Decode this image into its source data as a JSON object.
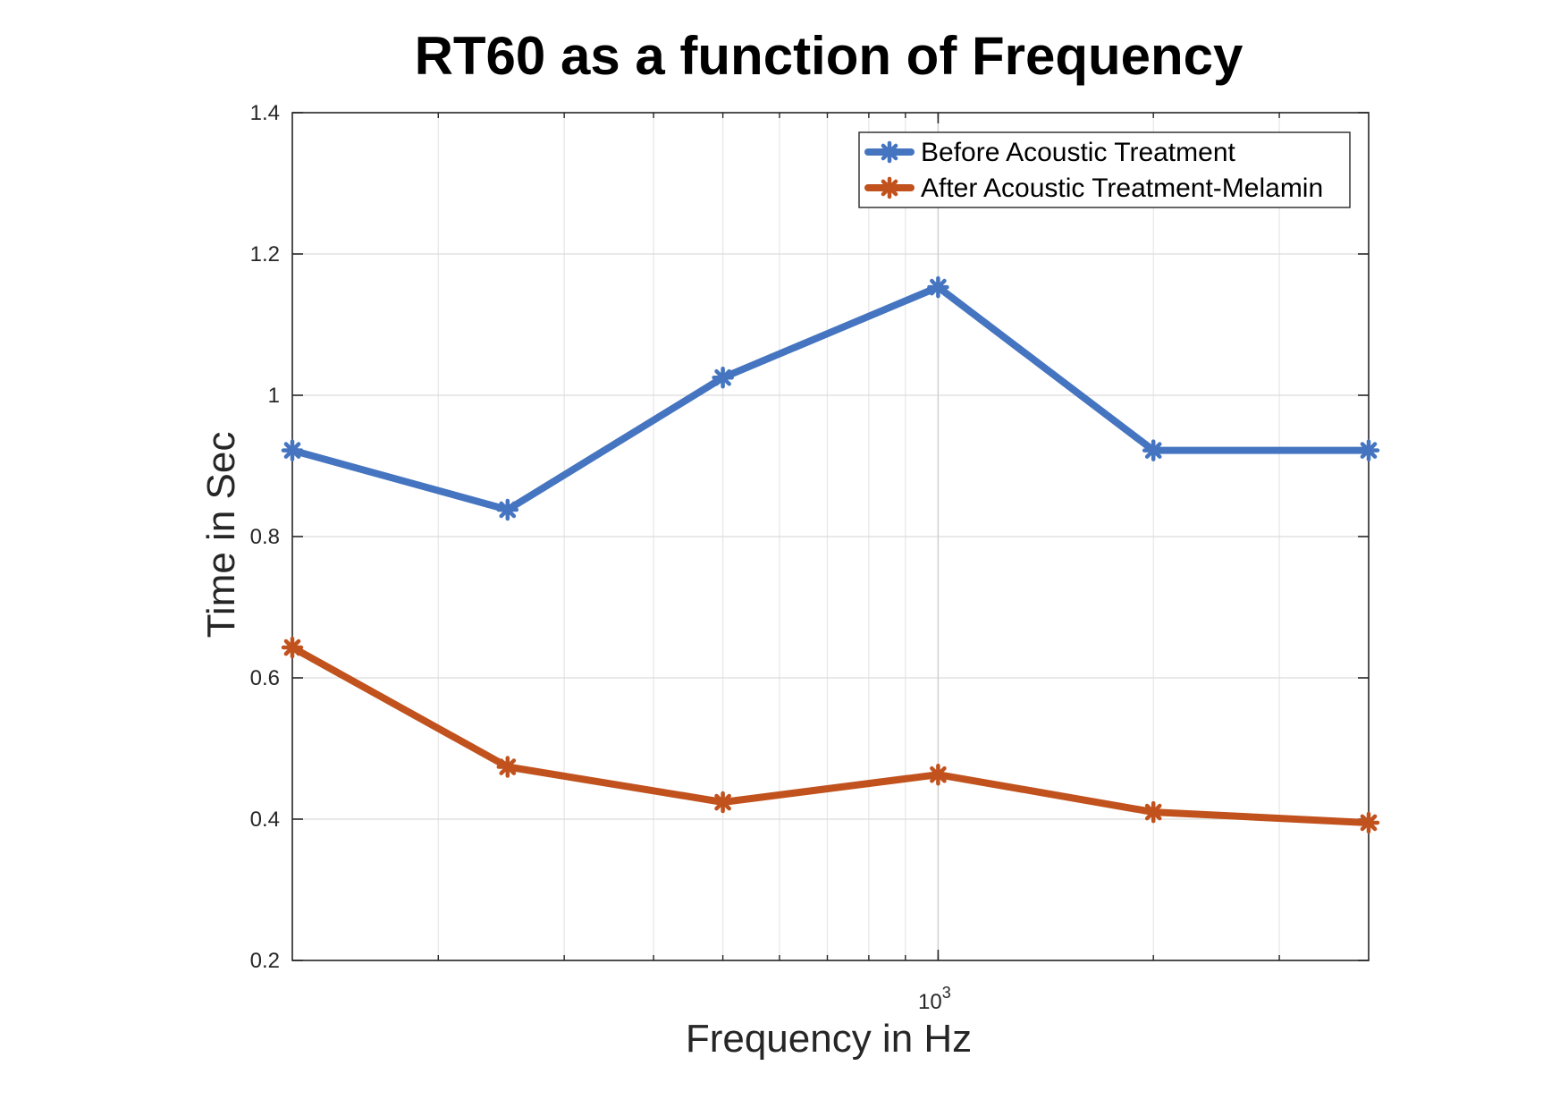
{
  "chart_data": {
    "type": "line",
    "title": "RT60 as a function of Frequency",
    "xlabel": "Frequency in Hz",
    "ylabel": "Time in Sec",
    "x_scale": "log",
    "xlim": [
      125,
      4000
    ],
    "ylim": [
      0.2,
      1.4
    ],
    "x": [
      125,
      250,
      500,
      1000,
      2000,
      4000
    ],
    "x_tick_labels": [
      {
        "value": 1000,
        "base": "10",
        "exponent": "3"
      }
    ],
    "y_ticks": [
      0.2,
      0.4,
      0.6,
      0.8,
      1,
      1.2,
      1.4
    ],
    "y_tick_labels": [
      "0.2",
      "0.4",
      "0.6",
      "0.8",
      "1",
      "1.2",
      "1.4"
    ],
    "grid": true,
    "legend_position": "top-right",
    "series": [
      {
        "name": "Before Acoustic Treatment",
        "color": "#4575c0",
        "marker": "asterisk",
        "values": [
          0.922,
          0.838,
          1.025,
          1.153,
          0.922,
          0.922
        ]
      },
      {
        "name": "After Acoustic Treatment-Melamin",
        "color": "#c1521e",
        "marker": "asterisk",
        "values": [
          0.643,
          0.474,
          0.424,
          0.463,
          0.41,
          0.395
        ]
      }
    ]
  }
}
